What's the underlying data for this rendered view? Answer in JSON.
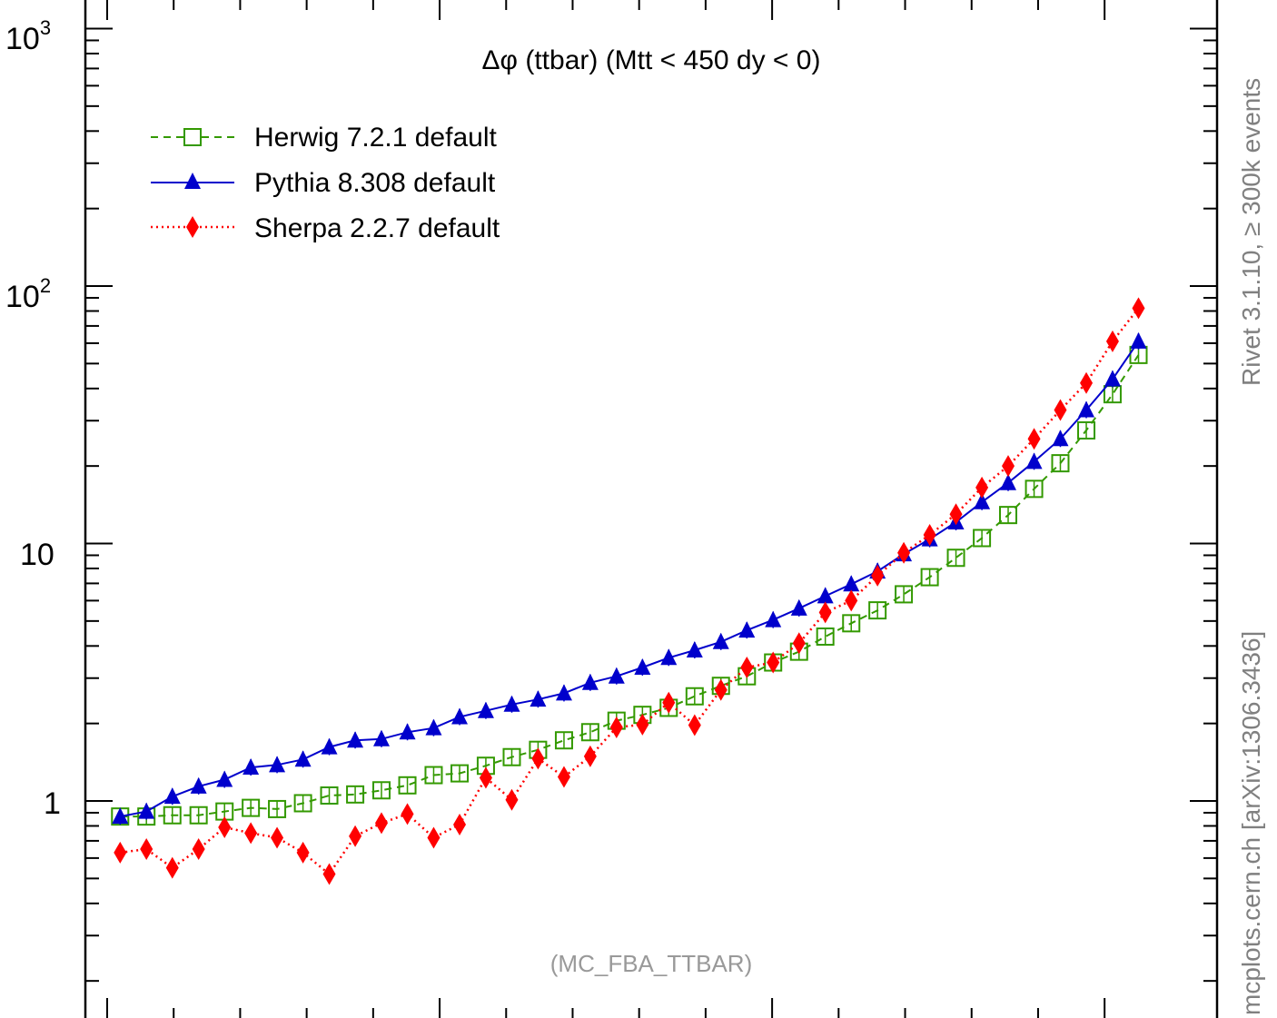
{
  "chart_data": {
    "type": "line",
    "title": "Δφ (ttbar) (Mtt < 450 dy < 0)",
    "xlabel": "",
    "ylabel": "",
    "y_scale": "log",
    "ylim": [
      0.2,
      1000
    ],
    "xlim": [
      0,
      3.1416
    ],
    "y_tick_labels": [
      {
        "base": "10",
        "exp": "3",
        "value": 1000
      },
      {
        "base": "10",
        "exp": "2",
        "value": 100
      },
      {
        "base": "10",
        "exp": "",
        "value": 10
      },
      {
        "base": "1",
        "exp": "",
        "value": 1
      }
    ],
    "legend_position": "top-left",
    "watermark": "(MC_FBA_TTBAR)",
    "x": [
      0.039,
      0.118,
      0.196,
      0.275,
      0.353,
      0.432,
      0.511,
      0.589,
      0.668,
      0.746,
      0.825,
      0.903,
      0.982,
      1.06,
      1.139,
      1.217,
      1.296,
      1.374,
      1.453,
      1.532,
      1.61,
      1.689,
      1.767,
      1.846,
      1.924,
      2.003,
      2.081,
      2.16,
      2.238,
      2.317,
      2.396,
      2.474,
      2.553,
      2.631,
      2.71,
      2.788,
      2.867,
      2.945,
      3.024,
      3.102
    ],
    "series": [
      {
        "name": "Herwig 7.2.1 default",
        "color": "#339900",
        "line_style": "dashed",
        "marker": "open-square",
        "values": [
          0.87,
          0.87,
          0.88,
          0.88,
          0.91,
          0.94,
          0.93,
          0.98,
          1.05,
          1.06,
          1.1,
          1.15,
          1.26,
          1.28,
          1.37,
          1.48,
          1.58,
          1.72,
          1.85,
          2.05,
          2.16,
          2.3,
          2.55,
          2.8,
          3.05,
          3.45,
          3.8,
          4.35,
          4.9,
          5.5,
          6.35,
          7.4,
          8.8,
          10.5,
          12.9,
          16.3,
          20.5,
          27.5,
          38.0,
          54.0
        ]
      },
      {
        "name": "Pythia 8.308 default",
        "color": "#0000cc",
        "line_style": "solid",
        "marker": "filled-triangle",
        "values": [
          0.87,
          0.91,
          1.04,
          1.14,
          1.21,
          1.35,
          1.38,
          1.45,
          1.62,
          1.72,
          1.74,
          1.85,
          1.92,
          2.12,
          2.24,
          2.37,
          2.48,
          2.62,
          2.88,
          3.05,
          3.3,
          3.6,
          3.85,
          4.15,
          4.6,
          5.05,
          5.6,
          6.25,
          6.95,
          7.8,
          9.1,
          10.4,
          12.1,
          14.5,
          17.2,
          20.8,
          25.5,
          33.0,
          43.5,
          61.0
        ]
      },
      {
        "name": "Sherpa 2.2.7 default",
        "color": "#ff0000",
        "line_style": "dotted",
        "marker": "filled-diamond",
        "values": [
          0.63,
          0.65,
          0.55,
          0.65,
          0.79,
          0.75,
          0.72,
          0.63,
          0.52,
          0.73,
          0.82,
          0.89,
          0.72,
          0.81,
          1.23,
          1.01,
          1.46,
          1.24,
          1.49,
          1.93,
          1.98,
          2.41,
          1.97,
          2.7,
          3.3,
          3.45,
          4.1,
          5.4,
          6.0,
          7.5,
          9.2,
          10.8,
          13.0,
          16.5,
          20.0,
          25.5,
          33.0,
          42.0,
          61.0,
          82.0
        ]
      }
    ]
  },
  "side_notes": {
    "rivet": "Rivet 3.1.10, ≥ 300k events",
    "mcplots": "mcplots.cern.ch [arXiv:1306.3436]"
  }
}
